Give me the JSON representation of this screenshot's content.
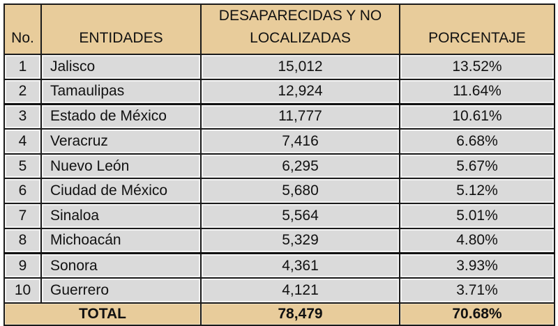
{
  "table": {
    "headers": {
      "no": "No.",
      "entidades": "ENTIDADES",
      "desaparecidas_line1": "DESAPARECIDAS Y NO",
      "desaparecidas_line2": "LOCALIZADAS",
      "porcentaje": "PORCENTAJE"
    },
    "rows": [
      {
        "no": "1",
        "entidad": "Jalisco",
        "desaparecidas": "15,012",
        "porcentaje": "13.52%"
      },
      {
        "no": "2",
        "entidad": "Tamaulipas",
        "desaparecidas": "12,924",
        "porcentaje": "11.64%"
      },
      {
        "no": "3",
        "entidad": "Estado de México",
        "desaparecidas": "11,777",
        "porcentaje": "10.61%"
      },
      {
        "no": "4",
        "entidad": "Veracruz",
        "desaparecidas": "7,416",
        "porcentaje": "6.68%"
      },
      {
        "no": "5",
        "entidad": "Nuevo León",
        "desaparecidas": "6,295",
        "porcentaje": "5.67%"
      },
      {
        "no": "6",
        "entidad": "Ciudad de México",
        "desaparecidas": "5,680",
        "porcentaje": "5.12%"
      },
      {
        "no": "7",
        "entidad": "Sinaloa",
        "desaparecidas": "5,564",
        "porcentaje": "5.01%"
      },
      {
        "no": "8",
        "entidad": "Michoacán",
        "desaparecidas": "5,329",
        "porcentaje": "4.80%"
      },
      {
        "no": "9",
        "entidad": "Sonora",
        "desaparecidas": "4,361",
        "porcentaje": "3.93%"
      },
      {
        "no": "10",
        "entidad": "Guerrero",
        "desaparecidas": "4,121",
        "porcentaje": "3.71%"
      }
    ],
    "total": {
      "label": "TOTAL",
      "desaparecidas": "78,479",
      "porcentaje": "70.68%"
    }
  },
  "colors": {
    "header_bg": "#e8cc9b",
    "row_bg": "#dadada",
    "border": "#1a1a1a"
  }
}
